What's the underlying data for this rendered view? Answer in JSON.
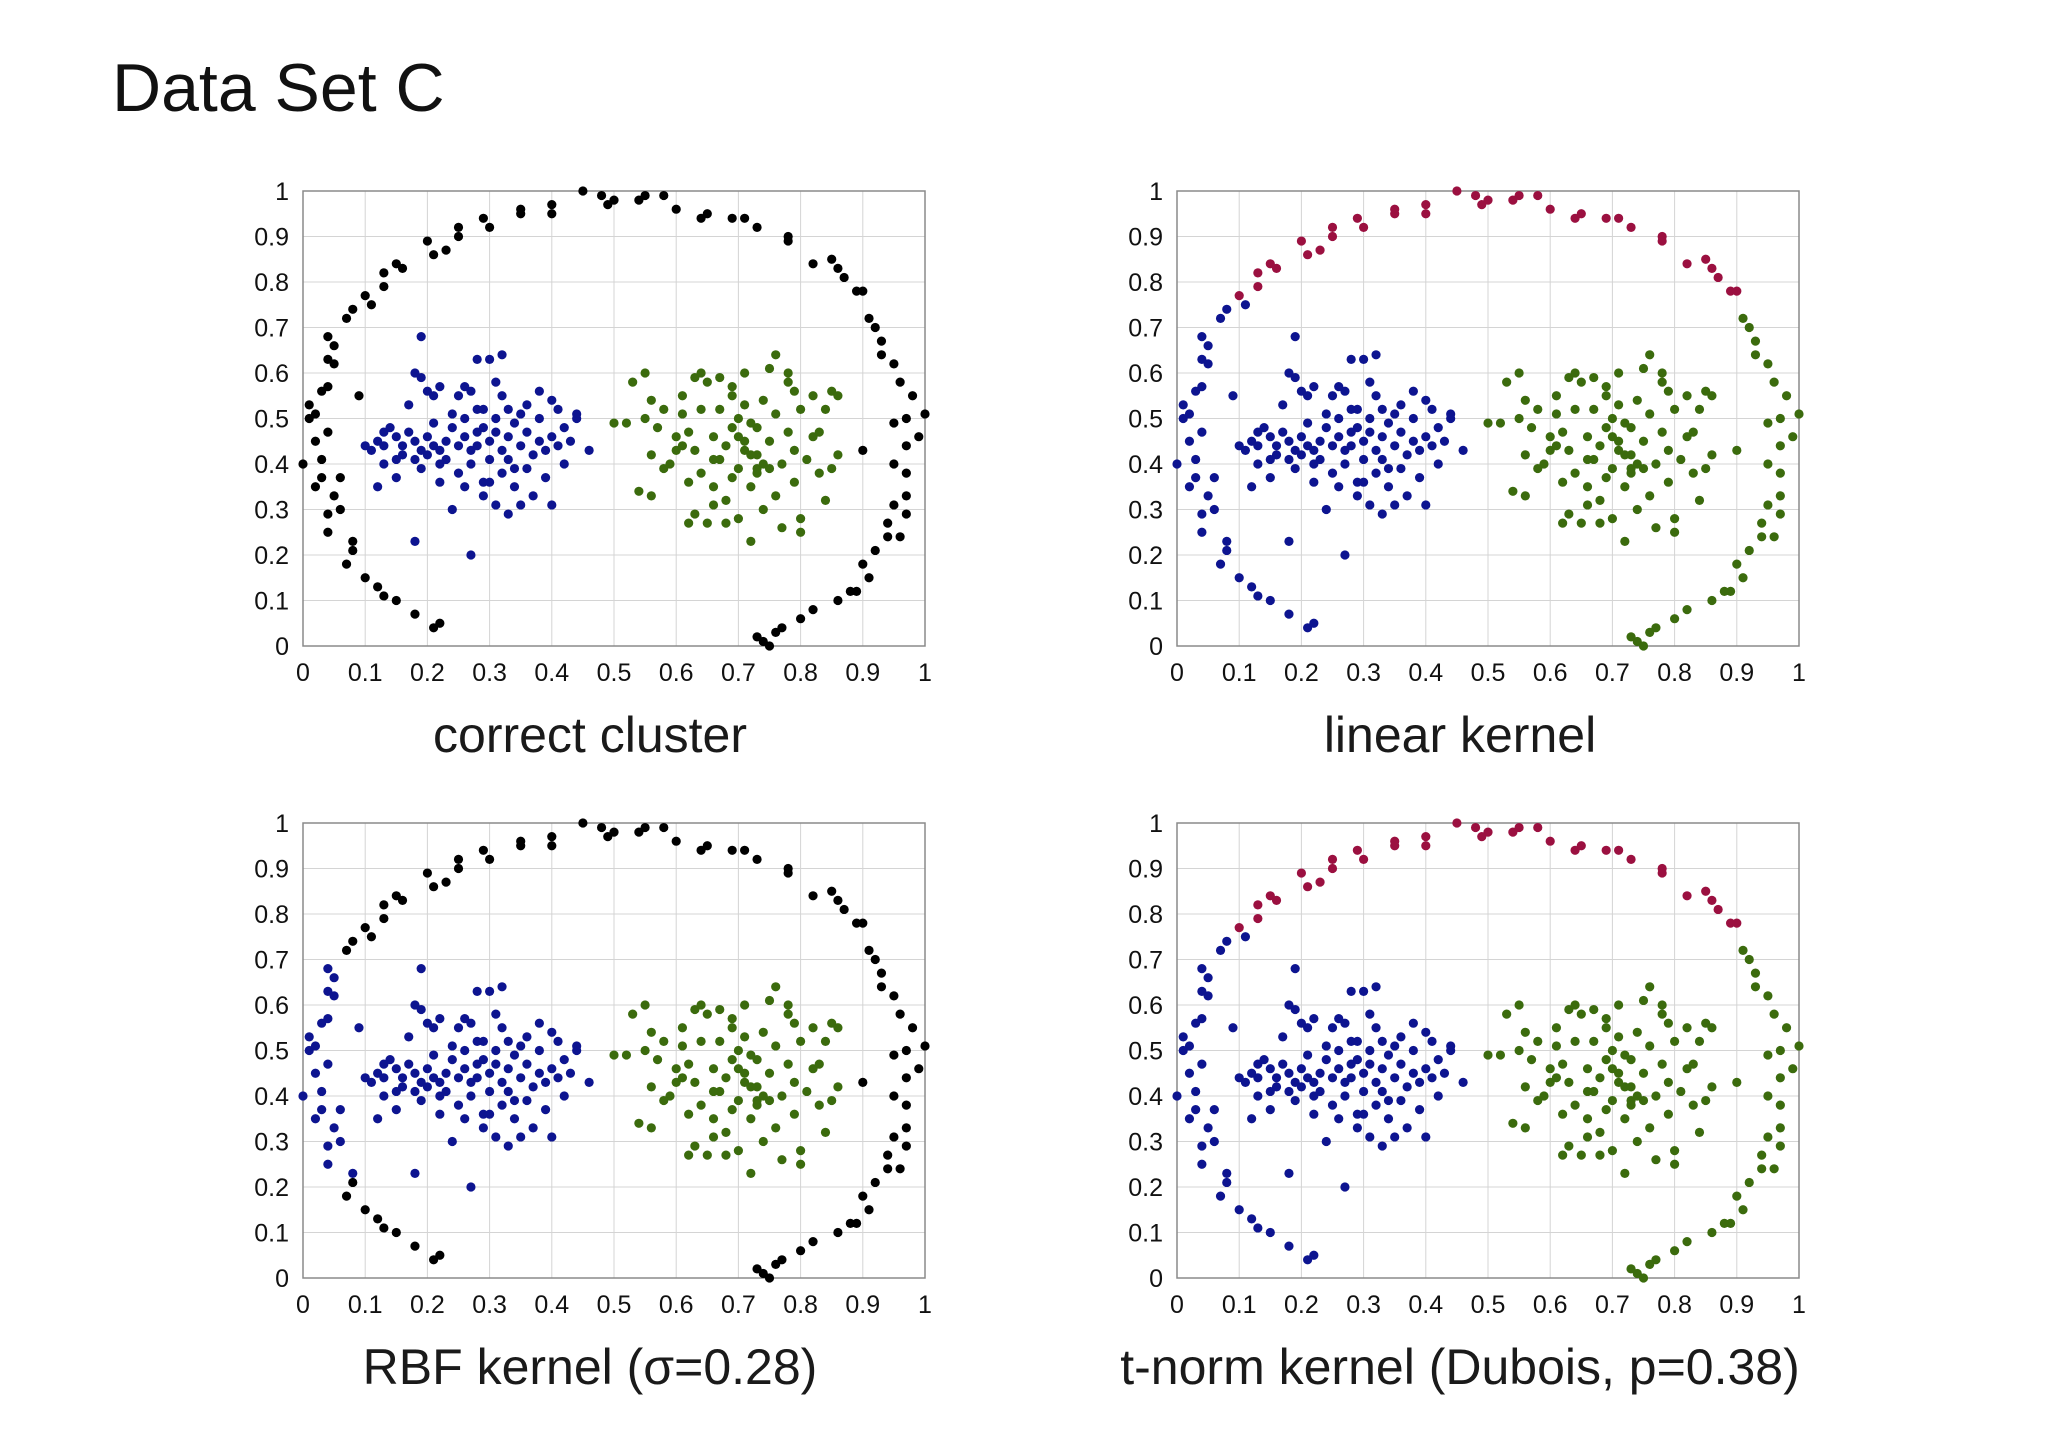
{
  "page_title": "Data Set C",
  "colors": {
    "outer": "#9b1040",
    "left": "#0d1490",
    "right": "#3b6b0d"
  },
  "chart_data": [
    {
      "type": "scatter",
      "title": "correct cluster",
      "xlim": [
        0,
        1
      ],
      "ylim": [
        0,
        1
      ],
      "xticks": [
        "0",
        "0.1",
        "0.2",
        "0.3",
        "0.4",
        "0.5",
        "0.6",
        "0.7",
        "0.8",
        "0.9",
        "1"
      ],
      "yticks": [
        "0",
        "0.1",
        "0.2",
        "0.3",
        "0.4",
        "0.5",
        "0.6",
        "0.7",
        "0.8",
        "0.9",
        "1"
      ],
      "grid": true,
      "assignment": "correct"
    },
    {
      "type": "scatter",
      "title": "linear kernel",
      "xlim": [
        0,
        1
      ],
      "ylim": [
        0,
        1
      ],
      "xticks": [
        "0",
        "0.1",
        "0.2",
        "0.3",
        "0.4",
        "0.5",
        "0.6",
        "0.7",
        "0.8",
        "0.9",
        "1"
      ],
      "yticks": [
        "0",
        "0.1",
        "0.2",
        "0.3",
        "0.4",
        "0.5",
        "0.6",
        "0.7",
        "0.8",
        "0.9",
        "1"
      ],
      "grid": true,
      "assignment": "linear"
    },
    {
      "type": "scatter",
      "title": "RBF kernel (σ=0.28)",
      "xlim": [
        0,
        1
      ],
      "ylim": [
        0,
        1
      ],
      "xticks": [
        "0",
        "0.1",
        "0.2",
        "0.3",
        "0.4",
        "0.5",
        "0.6",
        "0.7",
        "0.8",
        "0.9",
        "1"
      ],
      "yticks": [
        "0",
        "0.1",
        "0.2",
        "0.3",
        "0.4",
        "0.5",
        "0.6",
        "0.7",
        "0.8",
        "0.9",
        "1"
      ],
      "grid": true,
      "assignment": "rbf"
    },
    {
      "type": "scatter",
      "title": "t-norm kernel (Dubois, p=0.38)",
      "xlim": [
        0,
        1
      ],
      "ylim": [
        0,
        1
      ],
      "xticks": [
        "0",
        "0.1",
        "0.2",
        "0.3",
        "0.4",
        "0.5",
        "0.6",
        "0.7",
        "0.8",
        "0.9",
        "1"
      ],
      "yticks": [
        "0",
        "0.1",
        "0.2",
        "0.3",
        "0.4",
        "0.5",
        "0.6",
        "0.7",
        "0.8",
        "0.9",
        "1"
      ],
      "grid": true,
      "assignment": "linear"
    }
  ],
  "series": {
    "ring": [
      [
        0.0,
        0.4
      ],
      [
        0.01,
        0.5
      ],
      [
        0.02,
        0.51
      ],
      [
        0.02,
        0.45
      ],
      [
        0.03,
        0.41
      ],
      [
        0.03,
        0.37
      ],
      [
        0.02,
        0.35
      ],
      [
        0.04,
        0.57
      ],
      [
        0.03,
        0.56
      ],
      [
        0.04,
        0.47
      ],
      [
        0.05,
        0.33
      ],
      [
        0.04,
        0.29
      ],
      [
        0.06,
        0.3
      ],
      [
        0.04,
        0.25
      ],
      [
        0.07,
        0.18
      ],
      [
        0.08,
        0.21
      ],
      [
        0.08,
        0.23
      ],
      [
        0.05,
        0.62
      ],
      [
        0.04,
        0.63
      ],
      [
        0.05,
        0.66
      ],
      [
        0.04,
        0.68
      ],
      [
        0.07,
        0.72
      ],
      [
        0.08,
        0.74
      ],
      [
        0.1,
        0.77
      ],
      [
        0.11,
        0.75
      ],
      [
        0.13,
        0.79
      ],
      [
        0.13,
        0.82
      ],
      [
        0.15,
        0.84
      ],
      [
        0.16,
        0.83
      ],
      [
        0.2,
        0.89
      ],
      [
        0.21,
        0.86
      ],
      [
        0.23,
        0.87
      ],
      [
        0.25,
        0.9
      ],
      [
        0.25,
        0.92
      ],
      [
        0.29,
        0.94
      ],
      [
        0.3,
        0.92
      ],
      [
        0.35,
        0.95
      ],
      [
        0.35,
        0.96
      ],
      [
        0.4,
        0.97
      ],
      [
        0.4,
        0.95
      ],
      [
        0.45,
        1.0
      ],
      [
        0.48,
        0.99
      ],
      [
        0.49,
        0.97
      ],
      [
        0.5,
        0.98
      ],
      [
        0.54,
        0.98
      ],
      [
        0.55,
        0.99
      ],
      [
        0.58,
        0.99
      ],
      [
        0.6,
        0.96
      ],
      [
        0.64,
        0.94
      ],
      [
        0.65,
        0.95
      ],
      [
        0.69,
        0.94
      ],
      [
        0.71,
        0.94
      ],
      [
        0.73,
        0.92
      ],
      [
        0.78,
        0.9
      ],
      [
        0.78,
        0.89
      ],
      [
        0.82,
        0.84
      ],
      [
        0.85,
        0.85
      ],
      [
        0.86,
        0.83
      ],
      [
        0.87,
        0.81
      ],
      [
        0.89,
        0.78
      ],
      [
        0.9,
        0.78
      ],
      [
        0.91,
        0.72
      ],
      [
        0.92,
        0.7
      ],
      [
        0.93,
        0.67
      ],
      [
        0.93,
        0.64
      ],
      [
        0.95,
        0.62
      ],
      [
        0.96,
        0.58
      ],
      [
        0.98,
        0.55
      ],
      [
        1.0,
        0.51
      ],
      [
        0.99,
        0.46
      ],
      [
        0.97,
        0.5
      ],
      [
        0.95,
        0.49
      ],
      [
        0.97,
        0.44
      ],
      [
        0.95,
        0.4
      ],
      [
        0.97,
        0.38
      ],
      [
        0.97,
        0.33
      ],
      [
        0.95,
        0.31
      ],
      [
        0.97,
        0.29
      ],
      [
        0.94,
        0.27
      ],
      [
        0.96,
        0.24
      ],
      [
        0.94,
        0.24
      ],
      [
        0.92,
        0.21
      ],
      [
        0.9,
        0.18
      ],
      [
        0.91,
        0.15
      ],
      [
        0.89,
        0.12
      ],
      [
        0.88,
        0.12
      ],
      [
        0.86,
        0.1
      ],
      [
        0.82,
        0.08
      ],
      [
        0.8,
        0.06
      ],
      [
        0.77,
        0.04
      ],
      [
        0.76,
        0.03
      ],
      [
        0.74,
        0.01
      ],
      [
        0.73,
        0.02
      ],
      [
        0.75,
        0.0
      ],
      [
        0.01,
        0.53
      ],
      [
        0.09,
        0.55
      ],
      [
        0.1,
        0.15
      ],
      [
        0.12,
        0.13
      ],
      [
        0.13,
        0.11
      ],
      [
        0.15,
        0.1
      ],
      [
        0.18,
        0.07
      ],
      [
        0.21,
        0.04
      ],
      [
        0.22,
        0.05
      ],
      [
        0.06,
        0.37
      ],
      [
        0.9,
        0.43
      ]
    ],
    "left": [
      [
        0.1,
        0.44
      ],
      [
        0.11,
        0.43
      ],
      [
        0.12,
        0.45
      ],
      [
        0.13,
        0.47
      ],
      [
        0.14,
        0.48
      ],
      [
        0.15,
        0.46
      ],
      [
        0.16,
        0.44
      ],
      [
        0.16,
        0.42
      ],
      [
        0.18,
        0.41
      ],
      [
        0.18,
        0.45
      ],
      [
        0.19,
        0.43
      ],
      [
        0.19,
        0.39
      ],
      [
        0.2,
        0.42
      ],
      [
        0.2,
        0.46
      ],
      [
        0.21,
        0.49
      ],
      [
        0.21,
        0.44
      ],
      [
        0.22,
        0.43
      ],
      [
        0.22,
        0.4
      ],
      [
        0.23,
        0.41
      ],
      [
        0.23,
        0.45
      ],
      [
        0.24,
        0.48
      ],
      [
        0.24,
        0.51
      ],
      [
        0.25,
        0.44
      ],
      [
        0.25,
        0.38
      ],
      [
        0.26,
        0.5
      ],
      [
        0.26,
        0.46
      ],
      [
        0.27,
        0.43
      ],
      [
        0.27,
        0.4
      ],
      [
        0.28,
        0.44
      ],
      [
        0.28,
        0.52
      ],
      [
        0.29,
        0.48
      ],
      [
        0.29,
        0.36
      ],
      [
        0.3,
        0.45
      ],
      [
        0.3,
        0.41
      ],
      [
        0.31,
        0.47
      ],
      [
        0.31,
        0.5
      ],
      [
        0.32,
        0.43
      ],
      [
        0.32,
        0.38
      ],
      [
        0.33,
        0.46
      ],
      [
        0.33,
        0.41
      ],
      [
        0.34,
        0.49
      ],
      [
        0.34,
        0.35
      ],
      [
        0.35,
        0.44
      ],
      [
        0.35,
        0.31
      ],
      [
        0.36,
        0.39
      ],
      [
        0.36,
        0.47
      ],
      [
        0.37,
        0.42
      ],
      [
        0.37,
        0.33
      ],
      [
        0.38,
        0.45
      ],
      [
        0.38,
        0.5
      ],
      [
        0.39,
        0.37
      ],
      [
        0.39,
        0.43
      ],
      [
        0.4,
        0.46
      ],
      [
        0.4,
        0.31
      ],
      [
        0.41,
        0.44
      ],
      [
        0.42,
        0.4
      ],
      [
        0.42,
        0.48
      ],
      [
        0.43,
        0.45
      ],
      [
        0.44,
        0.5
      ],
      [
        0.46,
        0.43
      ],
      [
        0.19,
        0.68
      ],
      [
        0.18,
        0.6
      ],
      [
        0.19,
        0.59
      ],
      [
        0.2,
        0.56
      ],
      [
        0.21,
        0.55
      ],
      [
        0.22,
        0.57
      ],
      [
        0.25,
        0.55
      ],
      [
        0.26,
        0.57
      ],
      [
        0.27,
        0.56
      ],
      [
        0.28,
        0.63
      ],
      [
        0.3,
        0.63
      ],
      [
        0.31,
        0.58
      ],
      [
        0.32,
        0.64
      ],
      [
        0.32,
        0.55
      ],
      [
        0.33,
        0.52
      ],
      [
        0.35,
        0.51
      ],
      [
        0.29,
        0.52
      ],
      [
        0.17,
        0.53
      ],
      [
        0.15,
        0.37
      ],
      [
        0.13,
        0.4
      ],
      [
        0.12,
        0.35
      ],
      [
        0.18,
        0.23
      ],
      [
        0.27,
        0.2
      ],
      [
        0.24,
        0.3
      ],
      [
        0.29,
        0.33
      ],
      [
        0.31,
        0.31
      ],
      [
        0.33,
        0.29
      ],
      [
        0.34,
        0.39
      ],
      [
        0.26,
        0.35
      ],
      [
        0.22,
        0.36
      ],
      [
        0.36,
        0.53
      ],
      [
        0.38,
        0.56
      ],
      [
        0.4,
        0.54
      ],
      [
        0.41,
        0.52
      ],
      [
        0.44,
        0.51
      ],
      [
        0.13,
        0.44
      ],
      [
        0.15,
        0.41
      ],
      [
        0.17,
        0.47
      ],
      [
        0.28,
        0.47
      ],
      [
        0.3,
        0.36
      ]
    ],
    "right": [
      [
        0.5,
        0.49
      ],
      [
        0.52,
        0.49
      ],
      [
        0.53,
        0.58
      ],
      [
        0.55,
        0.6
      ],
      [
        0.55,
        0.5
      ],
      [
        0.56,
        0.42
      ],
      [
        0.56,
        0.33
      ],
      [
        0.54,
        0.34
      ],
      [
        0.58,
        0.52
      ],
      [
        0.59,
        0.4
      ],
      [
        0.6,
        0.46
      ],
      [
        0.61,
        0.51
      ],
      [
        0.62,
        0.47
      ],
      [
        0.62,
        0.36
      ],
      [
        0.63,
        0.29
      ],
      [
        0.63,
        0.43
      ],
      [
        0.64,
        0.52
      ],
      [
        0.64,
        0.38
      ],
      [
        0.65,
        0.58
      ],
      [
        0.65,
        0.27
      ],
      [
        0.66,
        0.46
      ],
      [
        0.66,
        0.35
      ],
      [
        0.67,
        0.41
      ],
      [
        0.67,
        0.52
      ],
      [
        0.68,
        0.32
      ],
      [
        0.68,
        0.44
      ],
      [
        0.69,
        0.48
      ],
      [
        0.69,
        0.57
      ],
      [
        0.7,
        0.39
      ],
      [
        0.7,
        0.28
      ],
      [
        0.7,
        0.5
      ],
      [
        0.71,
        0.45
      ],
      [
        0.71,
        0.53
      ],
      [
        0.71,
        0.6
      ],
      [
        0.72,
        0.35
      ],
      [
        0.72,
        0.23
      ],
      [
        0.73,
        0.42
      ],
      [
        0.73,
        0.48
      ],
      [
        0.74,
        0.3
      ],
      [
        0.74,
        0.54
      ],
      [
        0.75,
        0.39
      ],
      [
        0.75,
        0.45
      ],
      [
        0.76,
        0.33
      ],
      [
        0.76,
        0.51
      ],
      [
        0.77,
        0.4
      ],
      [
        0.77,
        0.26
      ],
      [
        0.78,
        0.47
      ],
      [
        0.78,
        0.58
      ],
      [
        0.79,
        0.36
      ],
      [
        0.79,
        0.43
      ],
      [
        0.8,
        0.52
      ],
      [
        0.8,
        0.28
      ],
      [
        0.81,
        0.41
      ],
      [
        0.82,
        0.46
      ],
      [
        0.82,
        0.55
      ],
      [
        0.83,
        0.38
      ],
      [
        0.84,
        0.52
      ],
      [
        0.84,
        0.32
      ],
      [
        0.85,
        0.56
      ],
      [
        0.86,
        0.42
      ],
      [
        0.56,
        0.54
      ],
      [
        0.57,
        0.48
      ],
      [
        0.58,
        0.39
      ],
      [
        0.6,
        0.43
      ],
      [
        0.61,
        0.44
      ],
      [
        0.61,
        0.55
      ],
      [
        0.66,
        0.31
      ],
      [
        0.68,
        0.27
      ],
      [
        0.69,
        0.37
      ],
      [
        0.7,
        0.46
      ],
      [
        0.72,
        0.49
      ],
      [
        0.73,
        0.39
      ],
      [
        0.74,
        0.4
      ],
      [
        0.75,
        0.61
      ],
      [
        0.76,
        0.64
      ],
      [
        0.78,
        0.6
      ],
      [
        0.79,
        0.56
      ],
      [
        0.8,
        0.25
      ],
      [
        0.83,
        0.47
      ],
      [
        0.85,
        0.39
      ],
      [
        0.86,
        0.55
      ],
      [
        0.63,
        0.59
      ],
      [
        0.64,
        0.6
      ],
      [
        0.67,
        0.59
      ],
      [
        0.69,
        0.55
      ],
      [
        0.71,
        0.43
      ],
      [
        0.72,
        0.42
      ],
      [
        0.73,
        0.38
      ],
      [
        0.62,
        0.27
      ],
      [
        0.66,
        0.41
      ]
    ]
  }
}
